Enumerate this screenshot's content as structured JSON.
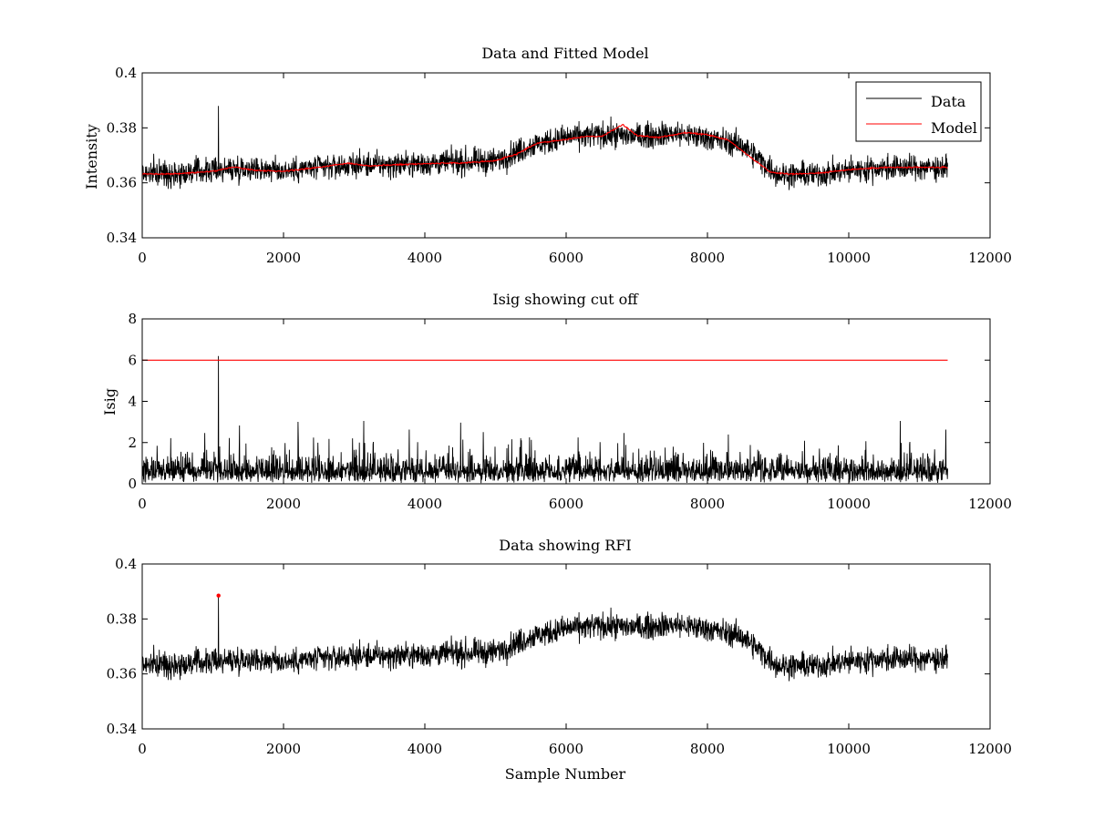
{
  "chart_data": [
    {
      "type": "line",
      "title": "Data and Fitted Model",
      "xlabel": "",
      "ylabel": "Intensity",
      "xlim": [
        0,
        12000
      ],
      "ylim": [
        0.34,
        0.4
      ],
      "xticks": [
        "0",
        "2000",
        "4000",
        "6000",
        "8000",
        "10000",
        "12000"
      ],
      "yticks": [
        "0.34",
        "0.36",
        "0.38",
        "0.4"
      ],
      "grid": false,
      "legend": {
        "placement": "top-right",
        "entries": [
          "Data",
          "Model"
        ]
      },
      "series": [
        {
          "name": "Data",
          "color": "#000000",
          "noise": 0.0045,
          "x": [
            0,
            500,
            1000,
            1500,
            2000,
            2500,
            3000,
            3500,
            4000,
            4500,
            5000,
            5500,
            6000,
            6500,
            7000,
            7500,
            8000,
            8500,
            9000,
            9500,
            10000,
            10500,
            11000,
            11400
          ],
          "center": [
            0.3635,
            0.3635,
            0.3645,
            0.3655,
            0.3645,
            0.3655,
            0.3665,
            0.3665,
            0.367,
            0.3675,
            0.368,
            0.3735,
            0.3765,
            0.3775,
            0.377,
            0.378,
            0.3765,
            0.3735,
            0.363,
            0.363,
            0.3645,
            0.3655,
            0.3655,
            0.3655
          ],
          "spikes": [
            {
              "x": 1080,
              "y": 0.388
            }
          ]
        },
        {
          "name": "Model",
          "color": "#ff0000",
          "x": [
            0,
            500,
            1000,
            1300,
            1600,
            2000,
            2500,
            2900,
            3200,
            4000,
            4500,
            5000,
            5300,
            5600,
            6000,
            6300,
            6500,
            6800,
            7000,
            7300,
            7700,
            8000,
            8300,
            8600,
            8900,
            9200,
            9600,
            10000,
            10500,
            11000,
            11400
          ],
          "y": [
            0.3632,
            0.3633,
            0.3642,
            0.3658,
            0.3645,
            0.3642,
            0.3656,
            0.3672,
            0.3662,
            0.367,
            0.3672,
            0.368,
            0.3705,
            0.3745,
            0.3758,
            0.377,
            0.3768,
            0.3812,
            0.3772,
            0.3765,
            0.3782,
            0.3775,
            0.3755,
            0.3695,
            0.3638,
            0.3632,
            0.3636,
            0.3648,
            0.3656,
            0.3656,
            0.3656
          ]
        }
      ]
    },
    {
      "type": "line",
      "title": "Isig showing cut off",
      "xlabel": "",
      "ylabel": "Isig",
      "xlim": [
        0,
        12000
      ],
      "ylim": [
        0,
        8
      ],
      "xticks": [
        "0",
        "2000",
        "4000",
        "6000",
        "8000",
        "10000",
        "12000"
      ],
      "yticks": [
        "0",
        "2",
        "4",
        "6",
        "8"
      ],
      "grid": false,
      "series": [
        {
          "color": "#000000",
          "x": [
            0,
            11400
          ],
          "level": 0.85,
          "spread": 1.3,
          "spikes": [
            {
              "x": 1080,
              "y": 6.2
            }
          ]
        },
        {
          "color": "#ff0000",
          "x": [
            0,
            11400
          ],
          "y": [
            6,
            6
          ]
        }
      ]
    },
    {
      "type": "line",
      "title": "Data showing RFI",
      "xlabel": "Sample Number",
      "ylabel": "",
      "xlim": [
        0,
        12000
      ],
      "ylim": [
        0.34,
        0.4
      ],
      "xticks": [
        "0",
        "2000",
        "4000",
        "6000",
        "8000",
        "10000",
        "12000"
      ],
      "yticks": [
        "0.34",
        "0.36",
        "0.38",
        "0.4"
      ],
      "grid": false,
      "series": [
        {
          "color": "#000000",
          "noise": 0.0045,
          "x": [
            0,
            500,
            1000,
            1500,
            2000,
            2500,
            3000,
            3500,
            4000,
            4500,
            5000,
            5500,
            6000,
            6500,
            7000,
            7500,
            8000,
            8500,
            9000,
            9500,
            10000,
            10500,
            11000,
            11400
          ],
          "center": [
            0.3635,
            0.3635,
            0.3645,
            0.3655,
            0.3645,
            0.3655,
            0.3665,
            0.3665,
            0.367,
            0.3675,
            0.368,
            0.3735,
            0.3765,
            0.3775,
            0.377,
            0.378,
            0.3765,
            0.3735,
            0.363,
            0.363,
            0.3645,
            0.3655,
            0.3655,
            0.3655
          ],
          "spikes": [
            {
              "x": 1080,
              "y": 0.388
            }
          ]
        },
        {
          "color": "#ff0000",
          "marker": "point",
          "x": [
            1080
          ],
          "y": [
            0.3885
          ]
        }
      ]
    }
  ]
}
